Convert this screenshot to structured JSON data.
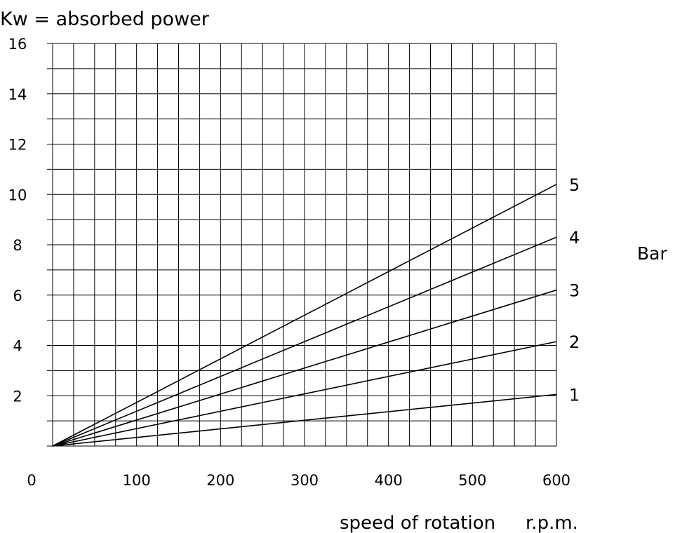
{
  "chart_data": {
    "type": "line",
    "title": "Kw = absorbed power",
    "xlabel": "speed of rotation",
    "xunit": "r.p.m.",
    "ylabel": "",
    "legend_title": "Bar",
    "xlim": [
      0,
      600
    ],
    "ylim": [
      0,
      16
    ],
    "x_ticks": [
      0,
      100,
      200,
      300,
      400,
      500,
      600
    ],
    "x_tick_labels": [
      "0",
      "100",
      "200",
      "300",
      "400",
      "500",
      "600"
    ],
    "y_ticks": [
      2,
      4,
      6,
      8,
      10,
      12,
      14,
      16
    ],
    "y_tick_labels": [
      "2",
      "4",
      "6",
      "8",
      "10",
      "12",
      "14",
      "16"
    ],
    "x_minor_step": 25,
    "y_minor_step": 1,
    "grid": true,
    "series": [
      {
        "name": "1",
        "x": [
          0,
          600
        ],
        "y": [
          0,
          2.05
        ]
      },
      {
        "name": "2",
        "x": [
          0,
          600
        ],
        "y": [
          0,
          4.15
        ]
      },
      {
        "name": "3",
        "x": [
          0,
          600
        ],
        "y": [
          0,
          6.2
        ]
      },
      {
        "name": "4",
        "x": [
          0,
          600
        ],
        "y": [
          0,
          8.3
        ]
      },
      {
        "name": "5",
        "x": [
          0,
          600
        ],
        "y": [
          0,
          10.4
        ]
      }
    ]
  }
}
